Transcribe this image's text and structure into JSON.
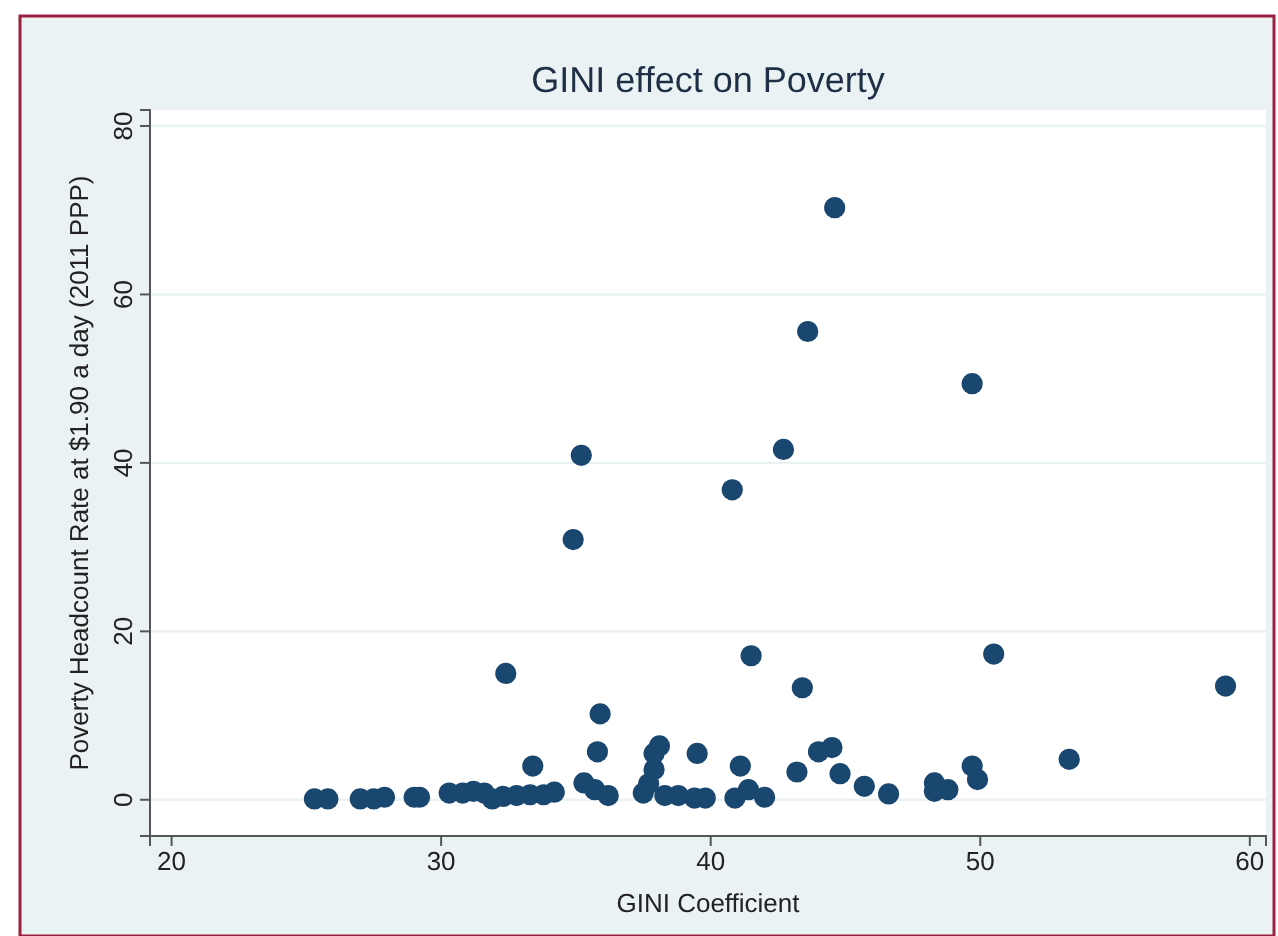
{
  "chart_data": {
    "type": "scatter",
    "title": "GINI effect on Poverty",
    "xlabel": "GINI Coefficient",
    "ylabel": "Poverty Headcount Rate at $1.90 a day (2011 PPP)",
    "xlim": [
      19.2,
      60.6
    ],
    "xticks": [
      20,
      30,
      40,
      50,
      60
    ],
    "ylim": [
      -4.3,
      81.9
    ],
    "yticks": [
      0,
      20,
      40,
      60,
      80
    ],
    "grid": "y",
    "marker": "circle",
    "series": [
      {
        "color": "#1a476f",
        "x": [
          44.6,
          43.6,
          49.7,
          42.7,
          35.2,
          40.8,
          34.9,
          32.4,
          41.5,
          50.5,
          59.1,
          43.4,
          35.9,
          35.8,
          38.1,
          37.9,
          39.5,
          44.0,
          44.5,
          43.2,
          44.8,
          53.3,
          33.4,
          41.1,
          49.7,
          49.9,
          25.3,
          25.8,
          27.0,
          27.5,
          27.9,
          29.0,
          29.2,
          30.3,
          30.8,
          31.2,
          31.6,
          31.9,
          32.3,
          32.8,
          33.3,
          33.8,
          34.2,
          35.3,
          35.7,
          36.2,
          37.5,
          37.7,
          37.9,
          38.3,
          38.8,
          39.4,
          39.8,
          40.9,
          41.4,
          42.0,
          45.7,
          46.6,
          48.3,
          48.3,
          48.8
        ],
        "values": [
          70.3,
          55.6,
          49.4,
          41.6,
          40.9,
          36.8,
          30.9,
          15.0,
          17.1,
          17.3,
          13.5,
          13.3,
          10.2,
          5.7,
          6.4,
          5.5,
          5.5,
          5.7,
          6.2,
          3.3,
          3.1,
          4.8,
          4.0,
          4.0,
          4.0,
          2.4,
          0.1,
          0.1,
          0.1,
          0.1,
          0.3,
          0.3,
          0.3,
          0.8,
          0.8,
          1.0,
          0.8,
          0.1,
          0.4,
          0.5,
          0.6,
          0.6,
          0.9,
          2.0,
          1.2,
          0.5,
          0.8,
          1.9,
          3.6,
          0.5,
          0.5,
          0.2,
          0.2,
          0.2,
          1.2,
          0.3,
          1.6,
          0.7,
          2.0,
          1.0,
          1.2
        ]
      }
    ]
  }
}
